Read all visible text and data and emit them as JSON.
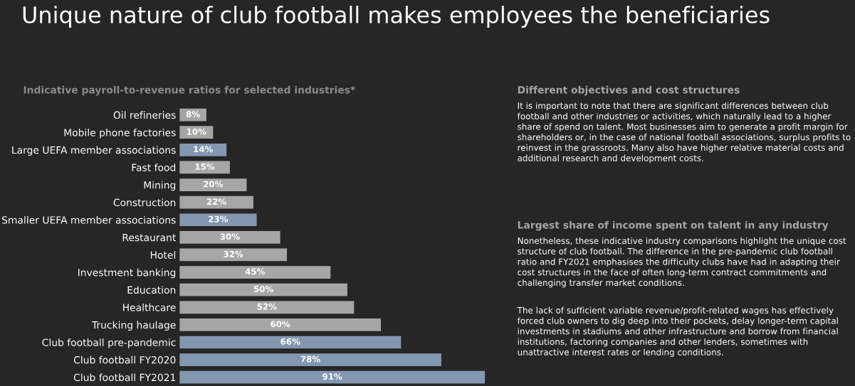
{
  "chart_data": {
    "type": "bar",
    "orientation": "horizontal",
    "title": "Unique nature of club football makes employees the beneficiaries",
    "subtitle": "Indicative payroll-to-revenue ratios for selected industries*",
    "categories": [
      "Oil refineries",
      "Mobile phone factories",
      "Large UEFA member associations",
      "Fast food",
      "Mining",
      "Construction",
      "Smaller UEFA member associations",
      "Restaurant",
      "Hotel",
      "Investment banking",
      "Education",
      "Healthcare",
      "Trucking haulage",
      "Club football pre-pandemic",
      "Club football FY2020",
      "Club football FY2021"
    ],
    "values": [
      8,
      10,
      14,
      15,
      20,
      22,
      23,
      30,
      32,
      45,
      50,
      52,
      60,
      66,
      78,
      91
    ],
    "colors": [
      "#a6a6a6",
      "#a6a6a6",
      "#8497b0",
      "#a6a6a6",
      "#a6a6a6",
      "#a6a6a6",
      "#8497b0",
      "#a6a6a6",
      "#a6a6a6",
      "#a6a6a6",
      "#a6a6a6",
      "#a6a6a6",
      "#a6a6a6",
      "#8497b0",
      "#8497b0",
      "#8497b0"
    ],
    "value_labels": [
      "8%",
      "10%",
      "14%",
      "15%",
      "20%",
      "22%",
      "23%",
      "30%",
      "32%",
      "45%",
      "50%",
      "52%",
      "60%",
      "66%",
      "78%",
      "91%"
    ],
    "tick_labels": "y",
    "grid": false,
    "legend": false,
    "annotations": [
      "Different objectives and cost structures",
      "It is important to note that there are significant differences between club football and other industries or activities, which naturally lead to a higher share of spend on talent. Most businesses aim to generate a profit margin for shareholders or, in the case of national football associations, surplus profits to reinvest in the grassroots. Many also have higher relative material costs and additional research and development costs.",
      "Largest share of income spent on talent in any industry",
      "Nonetheless, these indicative industry comparisons highlight the unique cost structure of club football. The difference in the pre-pandemic club football ratio and FY2021 emphasises the difficulty clubs have had in adapting their cost structures in the face of often long-term contract commitments and challenging transfer market conditions.",
      "The lack of sufficient variable revenue/profit-related wages has effectively forced club owners to dig deep into their pockets, delay longer-term capital investments in stadiums and other infrastructure and borrow from financial institutions, factoring companies and other lenders, sometimes with unattractive interest rates or lending conditions."
    ]
  }
}
